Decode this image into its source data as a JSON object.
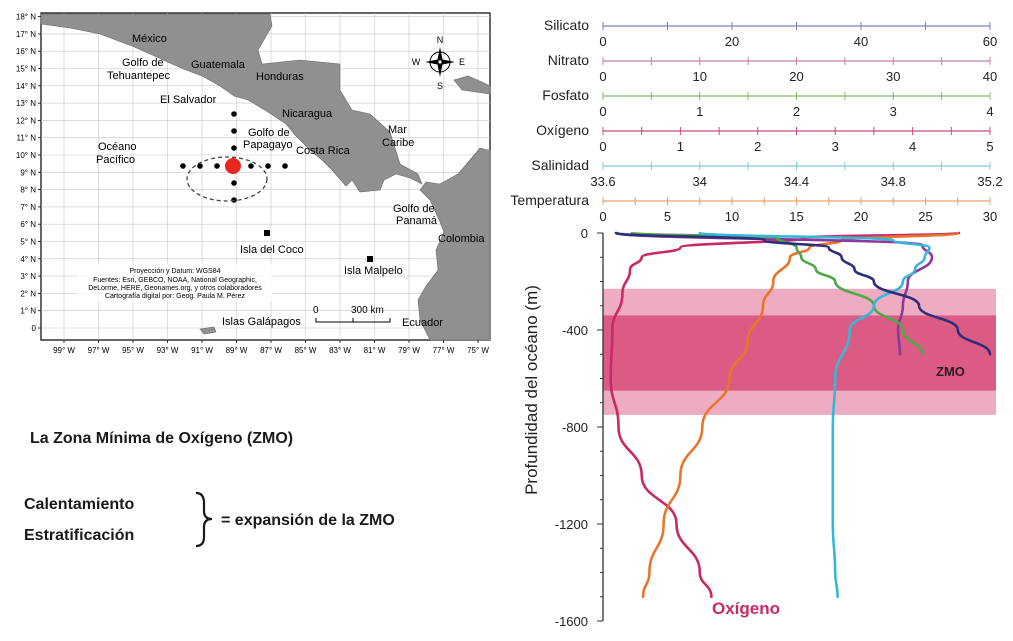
{
  "map": {
    "lat_ticks": [
      "0",
      "1° N",
      "2° N",
      "3° N",
      "4° N",
      "5° N",
      "6° N",
      "7° N",
      "8° N",
      "9° N",
      "10° N",
      "11° N",
      "12° N",
      "13° N",
      "14° N",
      "15° N",
      "16° N",
      "17° N",
      "18° N"
    ],
    "lon_ticks": [
      "99° W",
      "97° W",
      "95° W",
      "93° W",
      "91° W",
      "89° W",
      "87° W",
      "85° W",
      "83° W",
      "81° W",
      "79° W",
      "77° W",
      "75° W"
    ],
    "labels": {
      "mexico": "México",
      "golfo_tehuantepec_1": "Golfo de",
      "golfo_tehuantepec_2": "Tehuantepec",
      "guatemala": "Guatemala",
      "honduras": "Honduras",
      "el_salvador": "El Salvador",
      "nicaragua": "Nicaragua",
      "golfo_papagayo_1": "Golfo de",
      "golfo_papagayo_2": "Papagayo",
      "mar_caribe_1": "Mar",
      "mar_caribe_2": "Caribe",
      "oceano_1": "Océano",
      "oceano_2": "Pacífico",
      "costa_rica": "Costa Rica",
      "golfo_panama_1": "Golfo de",
      "golfo_panama_2": "Panamá",
      "colombia": "Colombia",
      "isla_coco": "Isla del Coco",
      "isla_malpelo": "Isla Malpelo",
      "islas_galapagos": "Islas Galápagos",
      "ecuador": "Ecuador"
    },
    "credits": [
      "Proyección y Datum: WGS84",
      "Fuentes: Esri, GEBCO, NOAA, National Geographic,",
      "DeLorme, HERE, Geonames.org, y otros colaboradores",
      "Cartografía digital por: Geog. Paula M. Pérez"
    ],
    "scale": {
      "zero": "0",
      "distance": "300 km"
    },
    "compass": {
      "n": "N",
      "s": "S",
      "e": "E",
      "w": "W"
    }
  },
  "text": {
    "title": "La Zona Mínima de Oxígeno (ZMO)",
    "factor1": "Calentamiento",
    "factor2": "Estratificación",
    "equation": "= expansión de la ZMO"
  },
  "chart_data": {
    "type": "line",
    "ylabel": "Profundidad del océano (m)",
    "y_ticks": [
      "0",
      "-400",
      "-800",
      "-1200",
      "-1600"
    ],
    "ylim": [
      -1600,
      0
    ],
    "zmo_label": "ZMO",
    "oxygen_label": "Oxígeno",
    "zmo_bands": [
      {
        "top": -230,
        "bottom": -750,
        "kind": "outer"
      },
      {
        "top": -340,
        "bottom": -650,
        "kind": "core"
      }
    ],
    "axes": [
      {
        "name": "Silicato",
        "min": 0,
        "max": 60,
        "ticks": [
          "0",
          "20",
          "40",
          "60"
        ],
        "color": "#7f7fb5"
      },
      {
        "name": "Nitrato",
        "min": 0,
        "max": 40,
        "ticks": [
          "0",
          "10",
          "20",
          "30",
          "40"
        ],
        "color": "#c77fb0"
      },
      {
        "name": "Fosfato",
        "min": 0,
        "max": 4,
        "ticks": [
          "0",
          "1",
          "2",
          "3",
          "4"
        ],
        "color": "#7fbf6a"
      },
      {
        "name": "Oxígeno",
        "min": 0,
        "max": 5,
        "ticks": [
          "0",
          "1",
          "2",
          "3",
          "4",
          "5"
        ],
        "color": "#c64a7f"
      },
      {
        "name": "Salinidad",
        "min": 33.6,
        "max": 35.2,
        "ticks": [
          "33.6",
          "34",
          "34.4",
          "34.8",
          "35.2"
        ],
        "color": "#7fc8d8"
      },
      {
        "name": "Temperatura",
        "min": 0,
        "max": 30,
        "ticks": [
          "0",
          "5",
          "10",
          "15",
          "20",
          "25",
          "30"
        ],
        "color": "#e8a36a"
      }
    ],
    "series": [
      {
        "name": "Oxígeno",
        "color": "#c72a66",
        "depth": [
          0,
          -20,
          -60,
          -100,
          -150,
          -250,
          -400,
          -600,
          -800,
          -1000,
          -1200,
          -1400,
          -1500
        ],
        "value": [
          4.6,
          2.6,
          1.0,
          0.5,
          0.35,
          0.25,
          0.12,
          0.1,
          0.2,
          0.5,
          0.95,
          1.25,
          1.4
        ]
      },
      {
        "name": "Temperatura",
        "color": "#e8762a",
        "depth": [
          0,
          -30,
          -60,
          -100,
          -200,
          -300,
          -450,
          -600,
          -800,
          -1000,
          -1200,
          -1400,
          -1500
        ],
        "value": [
          27.5,
          18.5,
          16.0,
          14.5,
          13.2,
          12.4,
          11.2,
          9.8,
          7.7,
          6.0,
          4.7,
          3.6,
          3.1
        ]
      },
      {
        "name": "Nitrato",
        "color": "#8a3a9a",
        "depth": [
          0,
          -50,
          -100,
          -200,
          -300,
          -400,
          -500
        ],
        "value": [
          1.5,
          33.0,
          34.0,
          31.5,
          31.0,
          30.5,
          30.7
        ]
      },
      {
        "name": "Fosfato",
        "color": "#4fa84a",
        "depth": [
          0,
          -20,
          -60,
          -100,
          -150,
          -200,
          -300,
          -400,
          -500
        ],
        "value": [
          0.3,
          1.8,
          2.0,
          2.05,
          2.2,
          2.4,
          2.8,
          3.1,
          3.3
        ]
      },
      {
        "name": "Salinidad",
        "color": "#39b6d6",
        "depth": [
          0,
          -30,
          -60,
          -100,
          -150,
          -200,
          -300,
          -400,
          -600,
          -800,
          -1000,
          -1200,
          -1400,
          -1500
        ],
        "value": [
          34.0,
          34.8,
          34.95,
          34.93,
          34.89,
          34.84,
          34.72,
          34.62,
          34.56,
          34.55,
          34.55,
          34.55,
          34.56,
          34.57
        ]
      },
      {
        "name": "Silicato",
        "color": "#2e2e7a",
        "depth": [
          0,
          -30,
          -60,
          -100,
          -150,
          -200,
          -300,
          -400,
          -500
        ],
        "value": [
          2,
          25,
          35,
          37,
          39,
          42,
          49,
          55,
          60
        ]
      }
    ]
  }
}
